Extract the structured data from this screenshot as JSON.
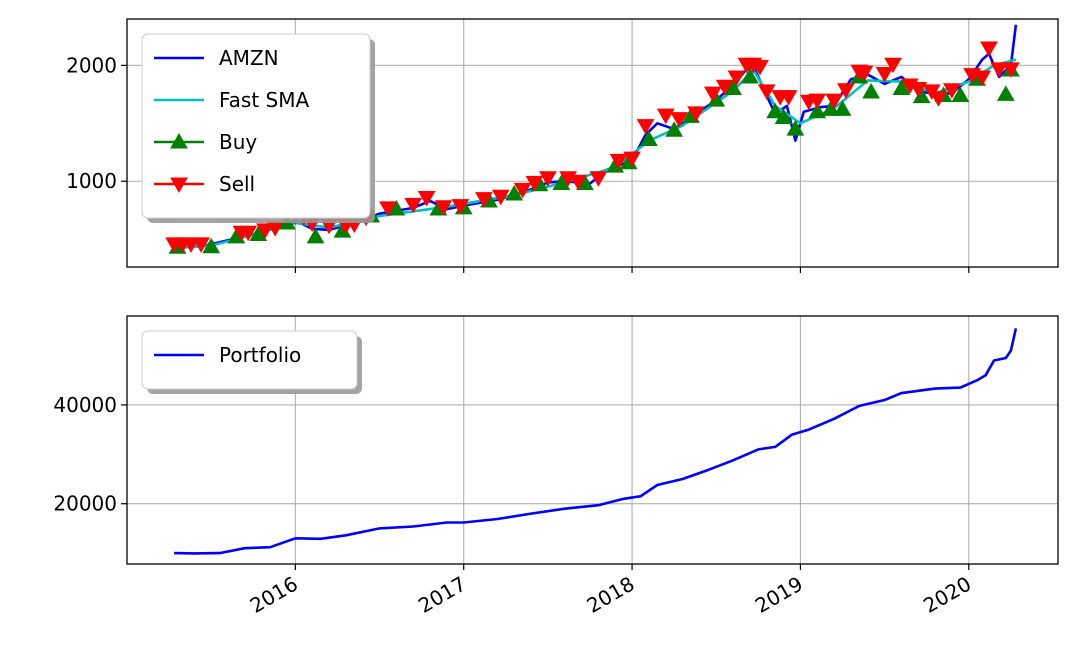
{
  "chart_data": [
    {
      "type": "line",
      "xlabel": "",
      "ylabel": "",
      "xlim": [
        2015.0,
        2020.53
      ],
      "ylim": [
        260,
        2400
      ],
      "grid": true,
      "legend_position": "top-left",
      "yticks": [
        1000,
        2000
      ],
      "ytick_labels": [
        "1000",
        "2000"
      ],
      "xticks": [
        2016,
        2017,
        2018,
        2019,
        2020
      ],
      "series": [
        {
          "name": "AMZN",
          "color": "#0000ff",
          "points": [
            [
              2015.28,
              430
            ],
            [
              2015.45,
              440
            ],
            [
              2015.6,
              490
            ],
            [
              2015.8,
              560
            ],
            [
              2016.0,
              660
            ],
            [
              2016.1,
              590
            ],
            [
              2016.2,
              580
            ],
            [
              2016.35,
              640
            ],
            [
              2016.5,
              720
            ],
            [
              2016.7,
              770
            ],
            [
              2016.8,
              830
            ],
            [
              2016.9,
              760
            ],
            [
              2017.0,
              790
            ],
            [
              2017.2,
              840
            ],
            [
              2017.4,
              930
            ],
            [
              2017.5,
              990
            ],
            [
              2017.6,
              1000
            ],
            [
              2017.75,
              980
            ],
            [
              2017.85,
              1100
            ],
            [
              2018.0,
              1180
            ],
            [
              2018.08,
              1400
            ],
            [
              2018.15,
              1500
            ],
            [
              2018.25,
              1450
            ],
            [
              2018.4,
              1600
            ],
            [
              2018.5,
              1700
            ],
            [
              2018.6,
              1830
            ],
            [
              2018.67,
              1950
            ],
            [
              2018.72,
              2000
            ],
            [
              2018.78,
              1800
            ],
            [
              2018.85,
              1580
            ],
            [
              2018.92,
              1650
            ],
            [
              2018.97,
              1350
            ],
            [
              2019.02,
              1600
            ],
            [
              2019.12,
              1640
            ],
            [
              2019.2,
              1650
            ],
            [
              2019.3,
              1880
            ],
            [
              2019.4,
              1920
            ],
            [
              2019.5,
              1840
            ],
            [
              2019.6,
              1900
            ],
            [
              2019.7,
              1780
            ],
            [
              2019.8,
              1750
            ],
            [
              2019.9,
              1760
            ],
            [
              2020.0,
              1880
            ],
            [
              2020.08,
              2050
            ],
            [
              2020.12,
              2100
            ],
            [
              2020.18,
              1900
            ],
            [
              2020.25,
              2000
            ],
            [
              2020.28,
              2350
            ]
          ]
        },
        {
          "name": "Fast SMA",
          "color": "#00bfbf",
          "points": [
            [
              2015.28,
              425
            ],
            [
              2015.5,
              445
            ],
            [
              2015.7,
              520
            ],
            [
              2016.0,
              640
            ],
            [
              2016.2,
              600
            ],
            [
              2016.5,
              700
            ],
            [
              2016.9,
              780
            ],
            [
              2017.3,
              880
            ],
            [
              2017.6,
              990
            ],
            [
              2017.9,
              1120
            ],
            [
              2018.1,
              1350
            ],
            [
              2018.3,
              1480
            ],
            [
              2018.6,
              1780
            ],
            [
              2018.72,
              1960
            ],
            [
              2018.85,
              1650
            ],
            [
              2019.0,
              1500
            ],
            [
              2019.2,
              1630
            ],
            [
              2019.4,
              1870
            ],
            [
              2019.6,
              1860
            ],
            [
              2019.8,
              1760
            ],
            [
              2020.0,
              1860
            ],
            [
              2020.15,
              2000
            ],
            [
              2020.28,
              2050
            ]
          ]
        }
      ],
      "markers": [
        {
          "name": "Buy",
          "color": "#008000",
          "marker": "triangle-up",
          "points": [
            [
              2015.3,
              430
            ],
            [
              2015.5,
              435
            ],
            [
              2015.65,
              520
            ],
            [
              2015.78,
              540
            ],
            [
              2015.95,
              640
            ],
            [
              2016.12,
              520
            ],
            [
              2016.28,
              570
            ],
            [
              2016.45,
              700
            ],
            [
              2016.6,
              760
            ],
            [
              2016.85,
              760
            ],
            [
              2017.0,
              770
            ],
            [
              2017.15,
              830
            ],
            [
              2017.3,
              890
            ],
            [
              2017.45,
              970
            ],
            [
              2017.58,
              980
            ],
            [
              2017.72,
              980
            ],
            [
              2017.9,
              1130
            ],
            [
              2017.98,
              1160
            ],
            [
              2018.1,
              1360
            ],
            [
              2018.25,
              1440
            ],
            [
              2018.35,
              1560
            ],
            [
              2018.5,
              1700
            ],
            [
              2018.6,
              1800
            ],
            [
              2018.7,
              1900
            ],
            [
              2018.85,
              1600
            ],
            [
              2018.9,
              1550
            ],
            [
              2018.97,
              1450
            ],
            [
              2019.1,
              1600
            ],
            [
              2019.18,
              1620
            ],
            [
              2019.25,
              1620
            ],
            [
              2019.35,
              1900
            ],
            [
              2019.42,
              1770
            ],
            [
              2019.6,
              1800
            ],
            [
              2019.72,
              1730
            ],
            [
              2019.85,
              1740
            ],
            [
              2019.95,
              1740
            ],
            [
              2020.05,
              1880
            ],
            [
              2020.22,
              1750
            ],
            [
              2020.25,
              1960
            ]
          ]
        },
        {
          "name": "Sell",
          "color": "#ff0000",
          "marker": "triangle-down",
          "points": [
            [
              2015.28,
              460
            ],
            [
              2015.33,
              460
            ],
            [
              2015.38,
              460
            ],
            [
              2015.44,
              460
            ],
            [
              2015.68,
              560
            ],
            [
              2015.72,
              560
            ],
            [
              2015.82,
              580
            ],
            [
              2015.88,
              600
            ],
            [
              2016.0,
              700
            ],
            [
              2016.05,
              690
            ],
            [
              2016.1,
              640
            ],
            [
              2016.2,
              620
            ],
            [
              2016.3,
              620
            ],
            [
              2016.35,
              630
            ],
            [
              2016.42,
              690
            ],
            [
              2016.55,
              770
            ],
            [
              2016.7,
              800
            ],
            [
              2016.78,
              860
            ],
            [
              2016.88,
              780
            ],
            [
              2016.98,
              790
            ],
            [
              2017.12,
              850
            ],
            [
              2017.22,
              870
            ],
            [
              2017.35,
              930
            ],
            [
              2017.42,
              990
            ],
            [
              2017.5,
              1030
            ],
            [
              2017.62,
              1030
            ],
            [
              2017.68,
              1000
            ],
            [
              2017.8,
              1030
            ],
            [
              2017.92,
              1180
            ],
            [
              2018.0,
              1200
            ],
            [
              2018.08,
              1480
            ],
            [
              2018.2,
              1570
            ],
            [
              2018.28,
              1540
            ],
            [
              2018.38,
              1590
            ],
            [
              2018.48,
              1760
            ],
            [
              2018.55,
              1820
            ],
            [
              2018.62,
              1900
            ],
            [
              2018.68,
              2010
            ],
            [
              2018.72,
              2010
            ],
            [
              2018.76,
              1990
            ],
            [
              2018.8,
              1780
            ],
            [
              2018.88,
              1730
            ],
            [
              2018.93,
              1730
            ],
            [
              2019.05,
              1690
            ],
            [
              2019.1,
              1700
            ],
            [
              2019.2,
              1700
            ],
            [
              2019.27,
              1790
            ],
            [
              2019.35,
              1950
            ],
            [
              2019.38,
              1940
            ],
            [
              2019.5,
              1930
            ],
            [
              2019.55,
              2010
            ],
            [
              2019.65,
              1830
            ],
            [
              2019.7,
              1800
            ],
            [
              2019.78,
              1780
            ],
            [
              2019.82,
              1720
            ],
            [
              2019.9,
              1790
            ],
            [
              2020.02,
              1920
            ],
            [
              2020.08,
              1900
            ],
            [
              2020.12,
              2150
            ],
            [
              2020.18,
              1970
            ],
            [
              2020.25,
              1970
            ]
          ]
        }
      ],
      "legend": [
        "AMZN",
        "Fast SMA",
        "Buy",
        "Sell"
      ]
    },
    {
      "type": "line",
      "xlabel": "",
      "ylabel": "",
      "xlim": [
        2015.0,
        2020.53
      ],
      "ylim": [
        7800,
        58000
      ],
      "grid": true,
      "legend_position": "top-left",
      "yticks": [
        20000,
        40000
      ],
      "ytick_labels": [
        "20000",
        "40000"
      ],
      "xticks": [
        2016,
        2017,
        2018,
        2019,
        2020
      ],
      "xtick_labels": [
        "2016",
        "2017",
        "2018",
        "2019",
        "2020"
      ],
      "series": [
        {
          "name": "Portfolio",
          "color": "#0000ff",
          "points": [
            [
              2015.28,
              10000
            ],
            [
              2015.4,
              9950
            ],
            [
              2015.55,
              10000
            ],
            [
              2015.7,
              11000
            ],
            [
              2015.85,
              11200
            ],
            [
              2016.0,
              13000
            ],
            [
              2016.15,
              12900
            ],
            [
              2016.3,
              13600
            ],
            [
              2016.5,
              15000
            ],
            [
              2016.7,
              15400
            ],
            [
              2016.9,
              16200
            ],
            [
              2017.0,
              16200
            ],
            [
              2017.2,
              16900
            ],
            [
              2017.4,
              18000
            ],
            [
              2017.6,
              19000
            ],
            [
              2017.8,
              19700
            ],
            [
              2017.95,
              21000
            ],
            [
              2018.05,
              21500
            ],
            [
              2018.15,
              23800
            ],
            [
              2018.3,
              25000
            ],
            [
              2018.45,
              26800
            ],
            [
              2018.6,
              28800
            ],
            [
              2018.75,
              31000
            ],
            [
              2018.85,
              31500
            ],
            [
              2018.95,
              34000
            ],
            [
              2019.05,
              35000
            ],
            [
              2019.2,
              37200
            ],
            [
              2019.35,
              39800
            ],
            [
              2019.5,
              41000
            ],
            [
              2019.6,
              42400
            ],
            [
              2019.8,
              43300
            ],
            [
              2019.95,
              43500
            ],
            [
              2020.05,
              45000
            ],
            [
              2020.1,
              46000
            ],
            [
              2020.15,
              49000
            ],
            [
              2020.22,
              49500
            ],
            [
              2020.25,
              51000
            ],
            [
              2020.28,
              55500
            ]
          ]
        }
      ],
      "legend": [
        "Portfolio"
      ]
    }
  ],
  "colors": {
    "amzn": "#0000ff",
    "fast_sma": "#00bfbf",
    "buy": "#008000",
    "sell": "#ff0000",
    "portfolio": "#0000ff",
    "grid": "#b0b0b0"
  }
}
